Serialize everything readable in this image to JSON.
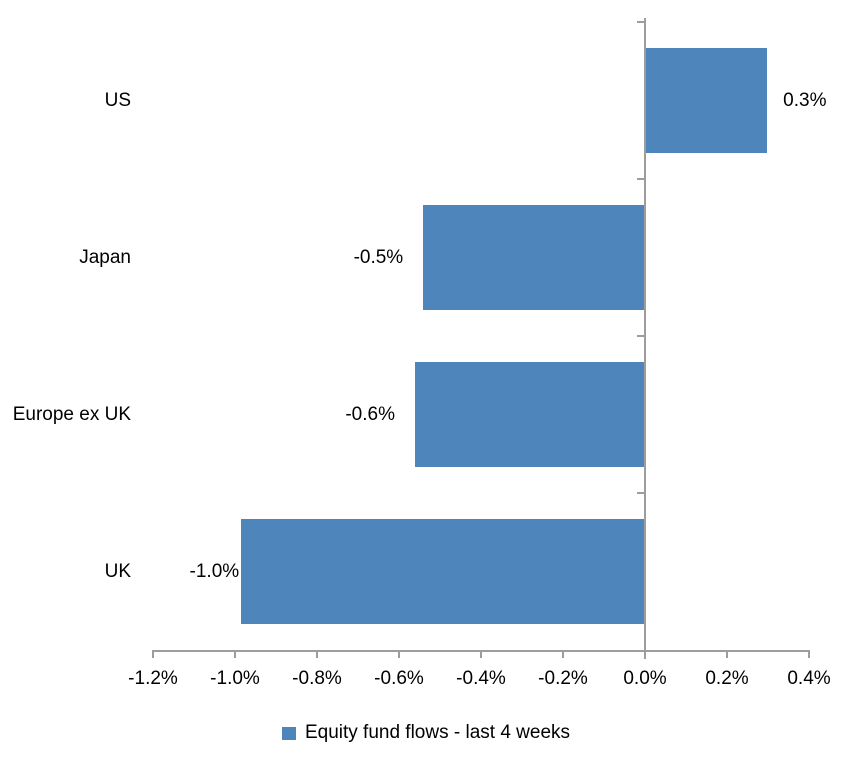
{
  "chart_data": {
    "type": "bar",
    "orientation": "horizontal",
    "title": "",
    "categories": [
      "US",
      "Japan",
      "Europe ex UK",
      "UK"
    ],
    "values": [
      0.3,
      -0.5,
      -0.6,
      -1.0
    ],
    "values_precise": [
      0.298,
      -0.541,
      -0.561,
      -0.985
    ],
    "value_labels": [
      "0.3%",
      "-0.5%",
      "-0.6%",
      "-1.0%"
    ],
    "unit": "%",
    "xlabel": "",
    "ylabel": "",
    "xlim": [
      -1.2,
      0.4
    ],
    "x_tick_values": [
      -1.2,
      -1.0,
      -0.8,
      -0.6,
      -0.4,
      -0.2,
      0.0,
      0.2,
      0.4
    ],
    "x_tick_labels": [
      "-1.2%",
      "-1.0%",
      "-0.8%",
      "-0.6%",
      "-0.4%",
      "-0.2%",
      "0.0%",
      "0.2%",
      "0.4%"
    ],
    "grid": false,
    "legend_position": "bottom",
    "legend": [
      {
        "label": "Equity fund flows - last 4 weeks",
        "marker": "square",
        "color": "#4E86BC"
      }
    ],
    "bar_color": "#4E86BC",
    "axis_color": "#9D9D9D",
    "text_color": "#000000",
    "background_color": "#FFFFFF"
  }
}
